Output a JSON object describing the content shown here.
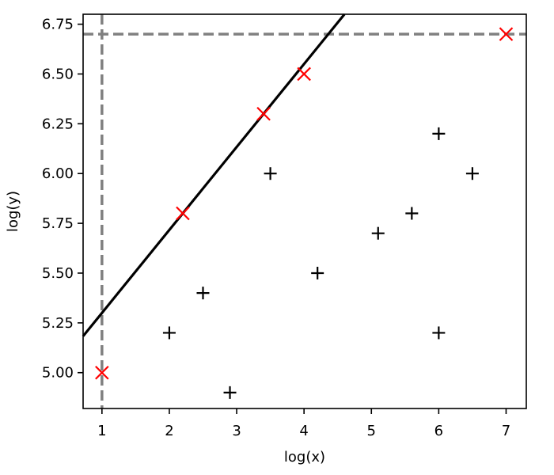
{
  "chart_data": {
    "type": "scatter",
    "xlabel": "log(x)",
    "ylabel": "log(y)",
    "xlim": [
      0.72,
      7.3
    ],
    "ylim": [
      4.82,
      6.8
    ],
    "xticks": [
      1,
      2,
      3,
      4,
      5,
      6,
      7
    ],
    "yticks": [
      5.0,
      5.25,
      5.5,
      5.75,
      6.0,
      6.25,
      6.5,
      6.75
    ],
    "ytick_labels": [
      "5.00",
      "5.25",
      "5.50",
      "5.75",
      "6.00",
      "6.25",
      "6.50",
      "6.75"
    ],
    "grid": false,
    "series": [
      {
        "marker": "x",
        "color": "#ff0000",
        "x": [
          1.0,
          2.2,
          3.4,
          4.0,
          7.0
        ],
        "y": [
          5.0,
          5.8,
          6.3,
          6.5,
          6.7
        ]
      },
      {
        "marker": "+",
        "color": "#000000",
        "x": [
          2.0,
          2.5,
          2.9,
          3.5,
          4.2,
          5.1,
          5.6,
          6.0,
          6.0,
          6.5
        ],
        "y": [
          5.2,
          5.4,
          4.9,
          6.0,
          5.5,
          5.7,
          5.8,
          6.2,
          5.2,
          6.0
        ]
      }
    ],
    "fit_line": {
      "slope": 0.4166667,
      "intercept": 4.8833333,
      "color": "#000000"
    },
    "reference_lines": [
      {
        "orientation": "vertical",
        "value": 1.0,
        "style": "dashed",
        "color": "#808080"
      },
      {
        "orientation": "horizontal",
        "value": 6.7,
        "style": "dashed",
        "color": "#808080"
      }
    ]
  }
}
